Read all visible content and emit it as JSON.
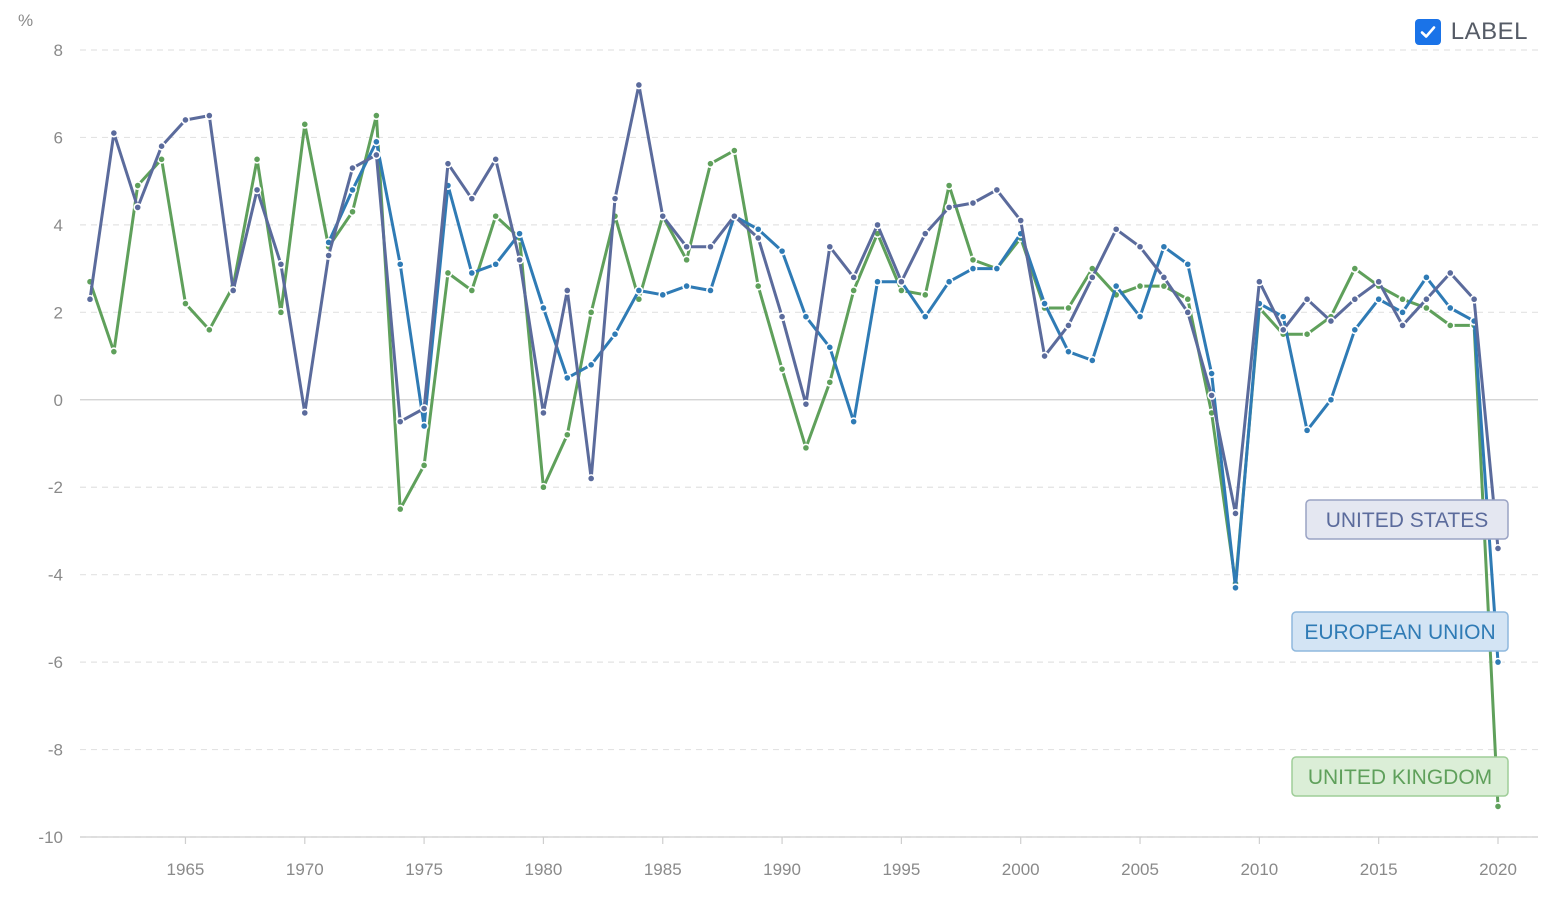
{
  "toolbar": {
    "label_toggle": "LABEL",
    "label_checked": true,
    "checkbox_icon": "checkmark-icon"
  },
  "chart_data": {
    "type": "line",
    "y_unit": "%",
    "ylim": [
      -10,
      8
    ],
    "y_ticks": [
      -10,
      -8,
      -6,
      -4,
      -2,
      0,
      2,
      4,
      6,
      8
    ],
    "x_ticks": [
      1965,
      1970,
      1975,
      1980,
      1985,
      1990,
      1995,
      2000,
      2005,
      2010,
      2015,
      2020
    ],
    "xlim": [
      1961,
      2020
    ],
    "grid": true,
    "x": [
      1961,
      1962,
      1963,
      1964,
      1965,
      1966,
      1967,
      1968,
      1969,
      1970,
      1971,
      1972,
      1973,
      1974,
      1975,
      1976,
      1977,
      1978,
      1979,
      1980,
      1981,
      1982,
      1983,
      1984,
      1985,
      1986,
      1987,
      1988,
      1989,
      1990,
      1991,
      1992,
      1993,
      1994,
      1995,
      1996,
      1997,
      1998,
      1999,
      2000,
      2001,
      2002,
      2003,
      2004,
      2005,
      2006,
      2007,
      2008,
      2009,
      2010,
      2011,
      2012,
      2013,
      2014,
      2015,
      2016,
      2017,
      2018,
      2019,
      2020
    ],
    "series": [
      {
        "name": "UNITED STATES",
        "color": "#5b6b9c",
        "label_bg": "#e4e7f1",
        "label_border": "#9aa3c4",
        "values": [
          2.3,
          6.1,
          4.4,
          5.8,
          6.4,
          6.5,
          2.5,
          4.8,
          3.1,
          -0.3,
          3.3,
          5.3,
          5.6,
          -0.5,
          -0.2,
          5.4,
          4.6,
          5.5,
          3.2,
          -0.3,
          2.5,
          -1.8,
          4.6,
          7.2,
          4.2,
          3.5,
          3.5,
          4.2,
          3.7,
          1.9,
          -0.1,
          3.5,
          2.8,
          4.0,
          2.7,
          3.8,
          4.4,
          4.5,
          4.8,
          4.1,
          1.0,
          1.7,
          2.8,
          3.9,
          3.5,
          2.8,
          2.0,
          0.1,
          -2.6,
          2.7,
          1.6,
          2.3,
          1.8,
          2.3,
          2.7,
          1.7,
          2.3,
          2.9,
          2.3,
          -3.4
        ]
      },
      {
        "name": "EUROPEAN UNION",
        "color": "#2f7bb5",
        "label_bg": "#d3e4f4",
        "label_border": "#8fb8dd",
        "values": [
          null,
          null,
          null,
          null,
          null,
          null,
          null,
          null,
          null,
          null,
          3.6,
          4.8,
          5.9,
          3.1,
          -0.6,
          4.9,
          2.9,
          3.1,
          3.8,
          2.1,
          0.5,
          0.8,
          1.5,
          2.5,
          2.4,
          2.6,
          2.5,
          4.2,
          3.9,
          3.4,
          1.9,
          1.2,
          -0.5,
          2.7,
          2.7,
          1.9,
          2.7,
          3.0,
          3.0,
          3.8,
          2.2,
          1.1,
          0.9,
          2.6,
          1.9,
          3.5,
          3.1,
          0.6,
          -4.3,
          2.2,
          1.9,
          -0.7,
          0.0,
          1.6,
          2.3,
          2.0,
          2.8,
          2.1,
          1.8,
          -6.0
        ]
      },
      {
        "name": "UNITED KINGDOM",
        "color": "#5fa05b",
        "label_bg": "#dbeed7",
        "label_border": "#9fcd98",
        "values": [
          2.7,
          1.1,
          4.9,
          5.5,
          2.2,
          1.6,
          2.6,
          5.5,
          2.0,
          6.3,
          3.5,
          4.3,
          6.5,
          -2.5,
          -1.5,
          2.9,
          2.5,
          4.2,
          3.7,
          -2.0,
          -0.8,
          2.0,
          4.2,
          2.3,
          4.2,
          3.2,
          5.4,
          5.7,
          2.6,
          0.7,
          -1.1,
          0.4,
          2.5,
          3.8,
          2.5,
          2.4,
          4.9,
          3.2,
          3.0,
          3.7,
          2.1,
          2.1,
          3.0,
          2.4,
          2.6,
          2.6,
          2.3,
          -0.3,
          -4.2,
          2.1,
          1.5,
          1.5,
          1.9,
          3.0,
          2.6,
          2.3,
          2.1,
          1.7,
          1.7,
          -9.3
        ]
      }
    ]
  }
}
